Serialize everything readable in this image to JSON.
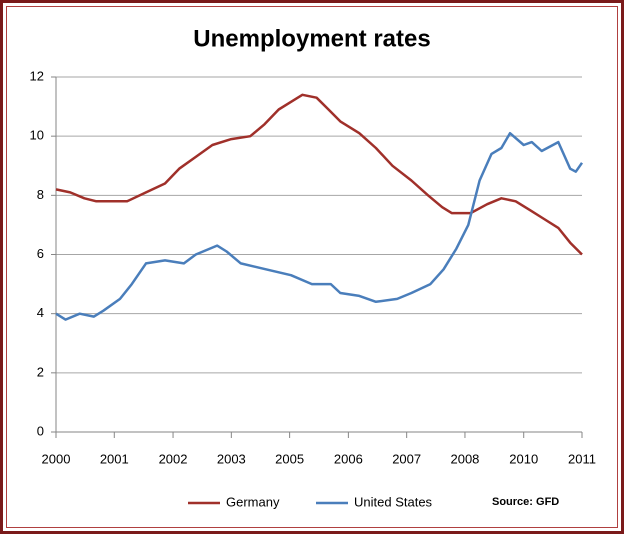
{
  "chart_data": {
    "type": "line",
    "title": "Unemployment rates",
    "source": "Source: GFD",
    "xlim": [
      2000,
      2011.1
    ],
    "xticks": [
      {
        "value": 2000,
        "label": "2000"
      },
      {
        "value": 2001.23,
        "label": "2001"
      },
      {
        "value": 2002.47,
        "label": "2002"
      },
      {
        "value": 2003.7,
        "label": "2003"
      },
      {
        "value": 2004.93,
        "label": "2005"
      },
      {
        "value": 2006.17,
        "label": "2006"
      },
      {
        "value": 2007.4,
        "label": "2007"
      },
      {
        "value": 2008.63,
        "label": "2008"
      },
      {
        "value": 2009.87,
        "label": "2010"
      },
      {
        "value": 2011.1,
        "label": "2011"
      }
    ],
    "ylim": [
      0,
      12
    ],
    "yticks": [
      0,
      2,
      4,
      6,
      8,
      10,
      12
    ],
    "grid": true,
    "legend": "bottom",
    "series": [
      {
        "name": "Germany",
        "color": "#a0302a",
        "x": [
          2000,
          2000.3,
          2000.6,
          2000.85,
          2001.5,
          2001.9,
          2002.3,
          2002.6,
          2002.95,
          2003.3,
          2003.7,
          2004.1,
          2004.4,
          2004.7,
          2005.0,
          2005.2,
          2005.5,
          2005.75,
          2006.0,
          2006.4,
          2006.75,
          2007.1,
          2007.5,
          2007.85,
          2008.15,
          2008.35,
          2008.75,
          2009.1,
          2009.4,
          2009.7,
          2010.0,
          2010.3,
          2010.6,
          2010.85,
          2011.1
        ],
        "values": [
          8.2,
          8.1,
          7.9,
          7.8,
          7.8,
          8.1,
          8.4,
          8.9,
          9.3,
          9.7,
          9.9,
          10.0,
          10.4,
          10.9,
          11.2,
          11.4,
          11.3,
          10.9,
          10.5,
          10.1,
          9.6,
          9.0,
          8.5,
          8.0,
          7.6,
          7.4,
          7.4,
          7.7,
          7.9,
          7.8,
          7.5,
          7.2,
          6.9,
          6.4,
          6.0
        ]
      },
      {
        "name": "United States",
        "color": "#4a7ebb",
        "x": [
          2000,
          2000.2,
          2000.5,
          2000.8,
          2001.0,
          2001.35,
          2001.6,
          2001.9,
          2002.3,
          2002.7,
          2002.95,
          2003.4,
          2003.6,
          2003.9,
          2004.43,
          2004.96,
          2005.4,
          2005.8,
          2006.0,
          2006.4,
          2006.75,
          2007.2,
          2007.5,
          2007.9,
          2008.18,
          2008.45,
          2008.7,
          2008.94,
          2009.19,
          2009.4,
          2009.58,
          2009.87,
          2010.04,
          2010.25,
          2010.6,
          2010.85,
          2010.97,
          2011.1
        ],
        "values": [
          4.0,
          3.8,
          4.0,
          3.9,
          4.1,
          4.5,
          5.0,
          5.7,
          5.8,
          5.7,
          6.0,
          6.3,
          6.1,
          5.7,
          5.5,
          5.3,
          5.0,
          5.0,
          4.7,
          4.6,
          4.4,
          4.5,
          4.7,
          5.0,
          5.5,
          6.2,
          7.0,
          8.5,
          9.4,
          9.6,
          10.1,
          9.7,
          9.8,
          9.5,
          9.8,
          8.9,
          8.8,
          9.1
        ]
      }
    ]
  }
}
